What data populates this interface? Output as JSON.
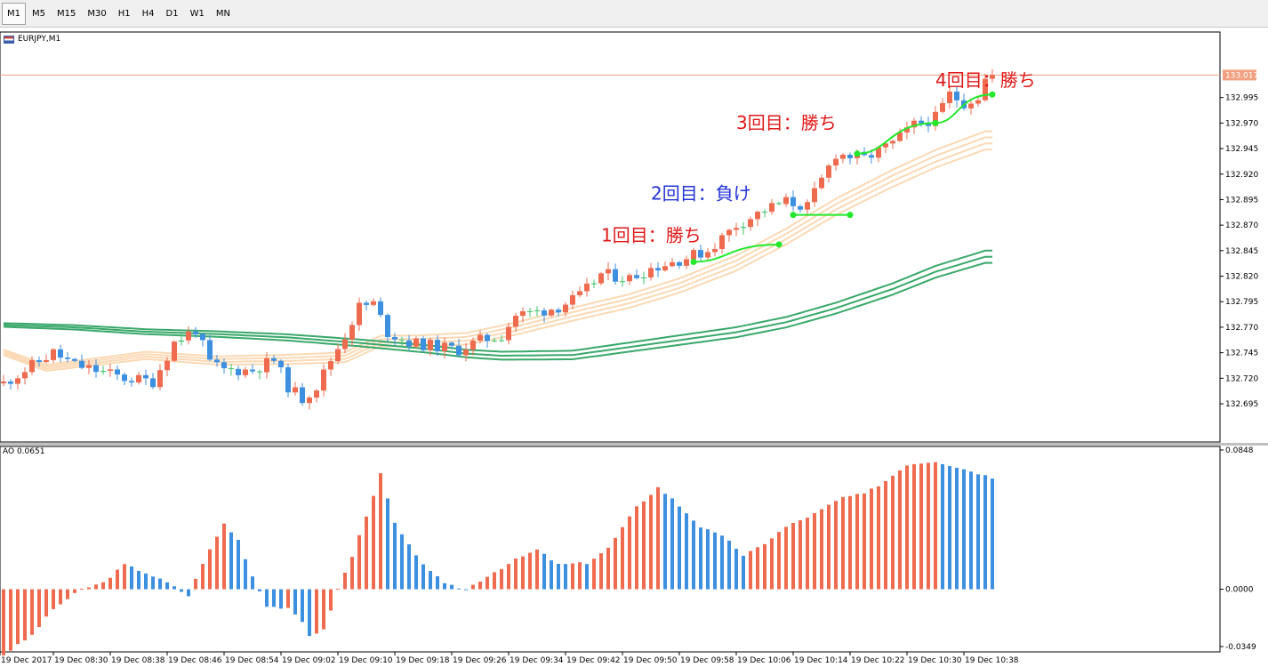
{
  "toolbar": {
    "timeframes": [
      "M1",
      "M5",
      "M15",
      "M30",
      "H1",
      "H4",
      "D1",
      "W1",
      "MN"
    ],
    "active": "M1"
  },
  "symbol": "EURJPY,M1",
  "ao_label": "AO 0.0651",
  "colors": {
    "bull": "#ef6b4f",
    "bear": "#3d8fe0",
    "doji": "#3fc36b",
    "ma_slow": "#3aa86a",
    "ma_fast": "#fbd9b4",
    "trade": "#22e82a",
    "win": "#e01818",
    "loss": "#2232d8",
    "price_line": "#f0a080"
  },
  "annotations": [
    {
      "text": "4回目：勝ち",
      "result": "win",
      "x_index": 131,
      "price": 133.006
    },
    {
      "text": "3回目：勝ち",
      "result": "win",
      "x_index": 103,
      "price": 132.964
    },
    {
      "text": "2回目：負け",
      "result": "loss",
      "x_index": 91,
      "price": 132.895
    },
    {
      "text": "1回目：勝ち",
      "result": "win",
      "x_index": 84,
      "price": 132.854
    }
  ],
  "chart_data": [
    {
      "type": "candlestick",
      "symbol": "EURJPY",
      "timeframe": "M1",
      "ylim": [
        132.675,
        133.04
      ],
      "y_ticks": [
        "133.017",
        "132.995",
        "132.970",
        "132.945",
        "132.920",
        "132.895",
        "132.870",
        "132.845",
        "132.820",
        "132.795",
        "132.770",
        "132.745",
        "132.720",
        "132.695"
      ],
      "x_ticks": [
        "19 Dec 2017",
        "19 Dec 08:30",
        "19 Dec 08:38",
        "19 Dec 08:46",
        "19 Dec 08:54",
        "19 Dec 09:02",
        "19 Dec 09:10",
        "19 Dec 09:18",
        "19 Dec 09:26",
        "19 Dec 09:34",
        "19 Dec 09:42",
        "19 Dec 09:50",
        "19 Dec 09:58",
        "19 Dec 10:06",
        "19 Dec 10:14",
        "19 Dec 10:22",
        "19 Dec 10:30",
        "19 Dec 10:38"
      ],
      "current_price": 133.017,
      "waypoints": [
        [
          0,
          132.715
        ],
        [
          3,
          132.728
        ],
        [
          7,
          132.745
        ],
        [
          10,
          132.733
        ],
        [
          14,
          132.726
        ],
        [
          17,
          132.72
        ],
        [
          21,
          132.717
        ],
        [
          24,
          132.755
        ],
        [
          27,
          132.768
        ],
        [
          29,
          132.735
        ],
        [
          31,
          132.728
        ],
        [
          35,
          132.728
        ],
        [
          38,
          132.738
        ],
        [
          40,
          132.712
        ],
        [
          42,
          132.7
        ],
        [
          44,
          132.712
        ],
        [
          46,
          132.738
        ],
        [
          48,
          132.762
        ],
        [
          50,
          132.79
        ],
        [
          52,
          132.793
        ],
        [
          54,
          132.765
        ],
        [
          57,
          132.755
        ],
        [
          60,
          132.752
        ],
        [
          64,
          132.748
        ],
        [
          67,
          132.757
        ],
        [
          70,
          132.762
        ],
        [
          72,
          132.782
        ],
        [
          75,
          132.785
        ],
        [
          78,
          132.79
        ],
        [
          81,
          132.8
        ],
        [
          84,
          132.822
        ],
        [
          88,
          132.818
        ],
        [
          91,
          132.828
        ],
        [
          95,
          132.836
        ],
        [
          99,
          132.845
        ],
        [
          103,
          132.87
        ],
        [
          107,
          132.885
        ],
        [
          110,
          132.893
        ],
        [
          113,
          132.888
        ],
        [
          117,
          132.94
        ],
        [
          121,
          132.935
        ],
        [
          125,
          132.95
        ],
        [
          128,
          132.968
        ],
        [
          131,
          132.975
        ],
        [
          133,
          132.998
        ],
        [
          135,
          132.99
        ],
        [
          137,
          132.996
        ],
        [
          138,
          133.013
        ]
      ],
      "ma_slow": [
        [
          0,
          132.774
        ],
        [
          10,
          132.772
        ],
        [
          20,
          132.768
        ],
        [
          30,
          132.766
        ],
        [
          40,
          132.763
        ],
        [
          50,
          132.758
        ],
        [
          60,
          132.752
        ],
        [
          65,
          132.748
        ],
        [
          70,
          132.746
        ],
        [
          80,
          132.747
        ],
        [
          88,
          132.755
        ],
        [
          95,
          132.762
        ],
        [
          103,
          132.77
        ],
        [
          110,
          132.78
        ],
        [
          117,
          132.794
        ],
        [
          125,
          132.813
        ],
        [
          131,
          132.83
        ],
        [
          138,
          132.845
        ]
      ],
      "ma_fast": [
        [
          0,
          132.745
        ],
        [
          6,
          132.73
        ],
        [
          12,
          132.735
        ],
        [
          20,
          132.742
        ],
        [
          30,
          132.737
        ],
        [
          40,
          132.738
        ],
        [
          48,
          132.74
        ],
        [
          53,
          132.756
        ],
        [
          58,
          132.756
        ],
        [
          65,
          132.758
        ],
        [
          72,
          132.768
        ],
        [
          80,
          132.782
        ],
        [
          88,
          132.795
        ],
        [
          95,
          132.81
        ],
        [
          103,
          132.832
        ],
        [
          110,
          132.858
        ],
        [
          117,
          132.887
        ],
        [
          125,
          132.915
        ],
        [
          131,
          132.934
        ],
        [
          138,
          132.952
        ]
      ],
      "trades": [
        {
          "n": 1,
          "result": "win",
          "entry": [
            97,
            132.834
          ],
          "exit": [
            109,
            132.851
          ]
        },
        {
          "n": 2,
          "result": "loss",
          "entry": [
            111,
            132.88
          ],
          "exit": [
            119,
            132.88
          ]
        },
        {
          "n": 3,
          "result": "win",
          "entry": [
            120,
            132.94
          ],
          "exit": [
            131,
            132.97
          ]
        },
        {
          "n": 4,
          "result": "win",
          "entry": [
            131,
            132.97
          ],
          "exit": [
            139,
            132.998
          ]
        }
      ]
    },
    {
      "type": "bar",
      "name": "Awesome Oscillator",
      "ylim": [
        -0.0349,
        0.0848
      ],
      "y_ticks": [
        "0.0848",
        "0.0000",
        "-0.0349"
      ],
      "waypoints": [
        [
          0,
          -0.04
        ],
        [
          4,
          -0.028
        ],
        [
          7,
          -0.012
        ],
        [
          11,
          0.0
        ],
        [
          14,
          0.004
        ],
        [
          17,
          0.015
        ],
        [
          20,
          0.01
        ],
        [
          23,
          0.004
        ],
        [
          26,
          -0.004
        ],
        [
          28,
          0.016
        ],
        [
          31,
          0.04
        ],
        [
          33,
          0.03
        ],
        [
          35,
          0.008
        ],
        [
          37,
          -0.01
        ],
        [
          40,
          -0.012
        ],
        [
          42,
          -0.02
        ],
        [
          43,
          -0.028
        ],
        [
          45,
          -0.025
        ],
        [
          47,
          0.0
        ],
        [
          49,
          0.02
        ],
        [
          53,
          0.07
        ],
        [
          55,
          0.04
        ],
        [
          58,
          0.02
        ],
        [
          62,
          0.003
        ],
        [
          65,
          0.0
        ],
        [
          68,
          0.008
        ],
        [
          72,
          0.018
        ],
        [
          75,
          0.024
        ],
        [
          78,
          0.015
        ],
        [
          82,
          0.016
        ],
        [
          85,
          0.025
        ],
        [
          89,
          0.05
        ],
        [
          92,
          0.062
        ],
        [
          94,
          0.055
        ],
        [
          98,
          0.038
        ],
        [
          102,
          0.03
        ],
        [
          104,
          0.02
        ],
        [
          107,
          0.028
        ],
        [
          110,
          0.038
        ],
        [
          114,
          0.046
        ],
        [
          118,
          0.056
        ],
        [
          121,
          0.058
        ],
        [
          124,
          0.066
        ],
        [
          127,
          0.076
        ],
        [
          131,
          0.078
        ],
        [
          136,
          0.072
        ],
        [
          139,
          0.068
        ]
      ]
    }
  ]
}
